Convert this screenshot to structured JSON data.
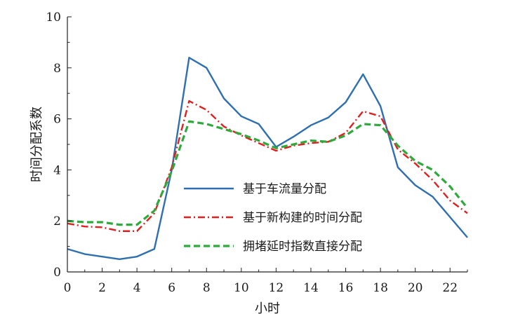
{
  "chart_data": {
    "type": "line",
    "xlabel": "小时",
    "ylabel": "时间分配系数",
    "xlim": [
      0,
      23
    ],
    "ylim": [
      0,
      10
    ],
    "xticks": [
      0,
      2,
      4,
      6,
      8,
      10,
      12,
      14,
      16,
      18,
      20,
      22
    ],
    "yticks": [
      0,
      2,
      4,
      6,
      8,
      10
    ],
    "grid": false,
    "legend_position": "center-right",
    "x": [
      0,
      1,
      2,
      3,
      4,
      5,
      6,
      7,
      8,
      9,
      10,
      11,
      12,
      13,
      14,
      15,
      16,
      17,
      18,
      19,
      20,
      21,
      22,
      23
    ],
    "series": [
      {
        "name": "基于车流量分配",
        "color": "#2e6fb0",
        "dash": "solid",
        "values": [
          0.9,
          0.7,
          0.6,
          0.5,
          0.6,
          0.9,
          4.0,
          8.4,
          8.0,
          6.8,
          6.1,
          5.8,
          4.9,
          5.3,
          5.75,
          6.05,
          6.65,
          7.75,
          6.5,
          4.1,
          3.4,
          2.95,
          2.15,
          1.35
        ]
      },
      {
        "name": "基于新构建的时间分配",
        "color": "#e02020",
        "dash": "dashdot",
        "values": [
          1.9,
          1.78,
          1.75,
          1.6,
          1.6,
          2.3,
          4.1,
          6.7,
          6.35,
          5.7,
          5.35,
          5.05,
          4.75,
          4.95,
          5.05,
          5.1,
          5.45,
          6.3,
          6.1,
          4.8,
          4.25,
          3.6,
          2.8,
          2.3
        ]
      },
      {
        "name": "拥堵延时指数直接分配",
        "color": "#2eaa3c",
        "dash": "dashed",
        "values": [
          2.0,
          1.95,
          1.95,
          1.85,
          1.85,
          2.4,
          3.95,
          5.9,
          5.8,
          5.6,
          5.4,
          5.15,
          4.85,
          5.0,
          5.15,
          5.1,
          5.35,
          5.8,
          5.75,
          4.95,
          4.35,
          4.0,
          3.35,
          2.5
        ]
      }
    ]
  }
}
